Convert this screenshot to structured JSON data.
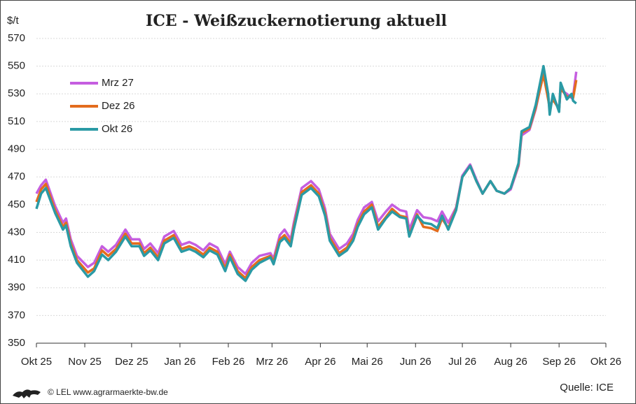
{
  "chart_data": {
    "type": "line",
    "title": "ICE - Weißzuckernotierung aktuell",
    "y_label": "$/t",
    "x": [
      0,
      3,
      6,
      12,
      17,
      19,
      22,
      26,
      33,
      37,
      42,
      46,
      51,
      57,
      61,
      66,
      69,
      73,
      78,
      82,
      88,
      93,
      98,
      102,
      107,
      111,
      116,
      121,
      124,
      129,
      134,
      138,
      143,
      150,
      152,
      156,
      159,
      163,
      165,
      170,
      176,
      181,
      185,
      188,
      194,
      199,
      203,
      206,
      210,
      215,
      219,
      224,
      228,
      233,
      237,
      239,
      244,
      248,
      253,
      257,
      260,
      264,
      269,
      273,
      278,
      282,
      286,
      291,
      295,
      300,
      304,
      309,
      311,
      316,
      320,
      325,
      328,
      329,
      331,
      335,
      336,
      340,
      343,
      344,
      346
    ],
    "series": [
      {
        "name": "Mrz 27",
        "color": "#c55ee0",
        "values": [
          458,
          464,
          468,
          449,
          437,
          440,
          425,
          413,
          405,
          408,
          420,
          416,
          421,
          432,
          425,
          425,
          418,
          422,
          415,
          427,
          431,
          421,
          423,
          421,
          417,
          422,
          419,
          407,
          416,
          405,
          400,
          408,
          413,
          415,
          411,
          428,
          432,
          425,
          437,
          462,
          467,
          461,
          447,
          429,
          418,
          422,
          429,
          439,
          448,
          452,
          438,
          445,
          450,
          446,
          445,
          432,
          446,
          441,
          440,
          438,
          445,
          437,
          448,
          471,
          479,
          468,
          458,
          467,
          460,
          458,
          461,
          478,
          500,
          504,
          519,
          545,
          528,
          518,
          528,
          519,
          533,
          530,
          527,
          528,
          546
        ]
      },
      {
        "name": "Dez 26",
        "color": "#e36c1d",
        "values": [
          452,
          461,
          465,
          446,
          434,
          437,
          422,
          410,
          401,
          404,
          417,
          413,
          418,
          429,
          422,
          422,
          415,
          419,
          412,
          424,
          428,
          418,
          420,
          418,
          414,
          419,
          416,
          404,
          414,
          402,
          397,
          405,
          410,
          413,
          409,
          425,
          428,
          422,
          434,
          459,
          464,
          458,
          444,
          426,
          415,
          419,
          426,
          436,
          445,
          450,
          434,
          441,
          447,
          442,
          441,
          428,
          443,
          434,
          433,
          431,
          440,
          433,
          447,
          470,
          478,
          467,
          458,
          467,
          460,
          458,
          462,
          479,
          502,
          505,
          520,
          544,
          526,
          520,
          526,
          519,
          534,
          528,
          528,
          527,
          540
        ]
      },
      {
        "name": "Okt 26",
        "color": "#2a9aa5",
        "values": [
          447,
          458,
          462,
          444,
          432,
          435,
          420,
          408,
          398,
          402,
          414,
          410,
          416,
          427,
          420,
          420,
          413,
          417,
          410,
          422,
          426,
          416,
          418,
          416,
          412,
          417,
          414,
          402,
          412,
          400,
          395,
          403,
          408,
          412,
          407,
          423,
          426,
          420,
          432,
          457,
          462,
          456,
          442,
          424,
          413,
          417,
          424,
          434,
          443,
          448,
          432,
          440,
          445,
          441,
          440,
          427,
          442,
          437,
          436,
          433,
          442,
          432,
          446,
          470,
          478,
          467,
          458,
          467,
          460,
          458,
          462,
          480,
          503,
          506,
          522,
          550,
          530,
          515,
          530,
          517,
          538,
          526,
          530,
          525,
          523
        ]
      }
    ],
    "xlim": [
      0,
      365
    ],
    "xticks": [
      {
        "value": 0,
        "label": "Okt 25"
      },
      {
        "value": 31,
        "label": "Nov 25"
      },
      {
        "value": 61,
        "label": "Dez 25"
      },
      {
        "value": 92,
        "label": "Jan 26"
      },
      {
        "value": 123,
        "label": "Feb 26"
      },
      {
        "value": 151,
        "label": "Mrz 26"
      },
      {
        "value": 182,
        "label": "Apr 26"
      },
      {
        "value": 212,
        "label": "Mai 26"
      },
      {
        "value": 243,
        "label": "Jun 26"
      },
      {
        "value": 273,
        "label": "Jul 26"
      },
      {
        "value": 304,
        "label": "Aug 26"
      },
      {
        "value": 335,
        "label": "Sep 26"
      },
      {
        "value": 365,
        "label": "Okt 26"
      }
    ],
    "ylim": [
      350,
      570
    ],
    "yticks": [
      350,
      370,
      390,
      410,
      430,
      450,
      470,
      490,
      510,
      530,
      550,
      570
    ],
    "grid": true,
    "legend": "upper-left",
    "footer": "© LEL www.agrarmaerkte-bw.de",
    "source": "Quelle: ICE"
  }
}
